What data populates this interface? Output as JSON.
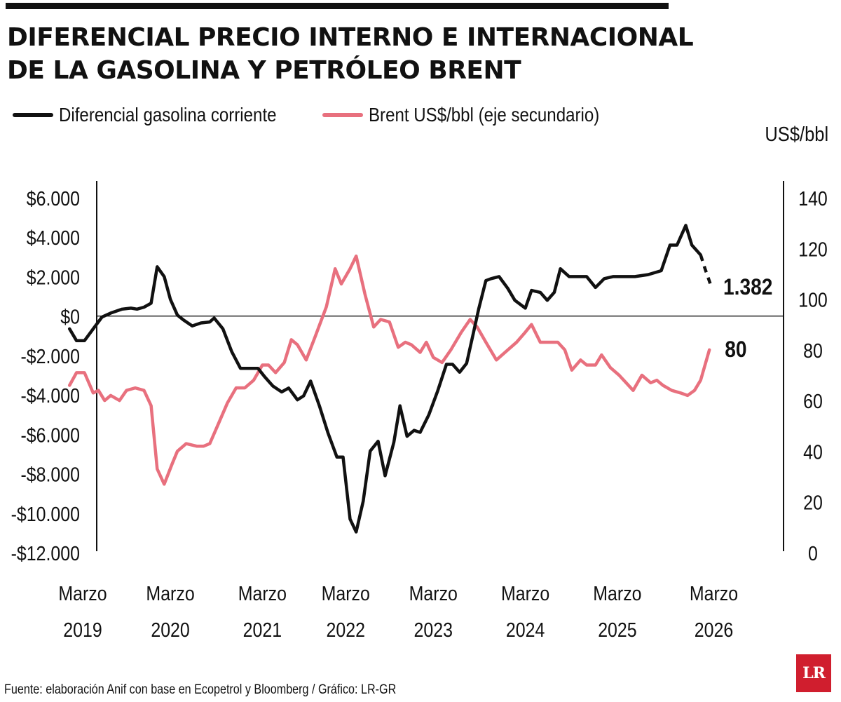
{
  "title": {
    "line1": "DIFERENCIAL PRECIO INTERNO E INTERNACIONAL",
    "line2": "DE LA GASOLINA Y PETRÓLEO BRENT"
  },
  "legend": {
    "series1": "Diferencial gasolina corriente",
    "series2": "Brent US$/bbl (eje secundario)"
  },
  "right_axis_unit": "US$/bbl",
  "source": "Fuente: elaboración Anif con base en Ecopetrol y Bloomberg / Gráfico: LR-GR",
  "logo_text": "LR",
  "colors": {
    "diferencial": "#111111",
    "brent": "#e8707e",
    "zero_line": "#111111"
  },
  "chart_data": {
    "type": "line",
    "x_range": [
      2019.0,
      2026.3
    ],
    "x_ticks": [
      {
        "month": "Marzo",
        "year": "2019",
        "x": 2019.0
      },
      {
        "month": "Marzo",
        "year": "2020",
        "x": 2020.0
      },
      {
        "month": "Marzo",
        "year": "2021",
        "x": 2021.05
      },
      {
        "month": "Marzo",
        "year": "2022",
        "x": 2022.0
      },
      {
        "month": "Marzo",
        "year": "2023",
        "x": 2023.0
      },
      {
        "month": "Marzo",
        "year": "2024",
        "x": 2024.05
      },
      {
        "month": "Marzo",
        "year": "2025",
        "x": 2025.1
      },
      {
        "month": "Marzo",
        "year": "2026",
        "x": 2026.2
      }
    ],
    "y_left": {
      "range": [
        -12000,
        6000
      ],
      "ticks": [
        6000,
        4000,
        2000,
        0,
        -2000,
        -4000,
        -6000,
        -8000,
        -10000,
        -12000
      ],
      "tick_labels": [
        "$6.000",
        "$4.000",
        "$2.000",
        "$0",
        "-$2.000",
        "-$4.000",
        "-$6.000",
        "-$8.000",
        "-$10.000",
        "-$12.000"
      ]
    },
    "y_right": {
      "range": [
        0,
        140
      ],
      "ticks": [
        140,
        120,
        100,
        80,
        60,
        40,
        20,
        0
      ],
      "tick_labels": [
        "140",
        "120",
        "100",
        "80",
        "60",
        "40",
        "20",
        "0"
      ]
    },
    "series": [
      {
        "name": "Diferencial gasolina corriente",
        "axis": "left",
        "points": [
          [
            2018.85,
            -650
          ],
          [
            2018.93,
            -1250
          ],
          [
            2019.02,
            -1250
          ],
          [
            2019.12,
            -650
          ],
          [
            2019.22,
            -50
          ],
          [
            2019.32,
            150
          ],
          [
            2019.45,
            350
          ],
          [
            2019.55,
            400
          ],
          [
            2019.62,
            350
          ],
          [
            2019.7,
            450
          ],
          [
            2019.78,
            650
          ],
          [
            2019.85,
            2500
          ],
          [
            2019.93,
            2000
          ],
          [
            2020.0,
            850
          ],
          [
            2020.08,
            50
          ],
          [
            2020.15,
            -200
          ],
          [
            2020.25,
            -500
          ],
          [
            2020.35,
            -350
          ],
          [
            2020.45,
            -300
          ],
          [
            2020.5,
            -100
          ],
          [
            2020.6,
            -650
          ],
          [
            2020.7,
            -1800
          ],
          [
            2020.8,
            -2650
          ],
          [
            2020.9,
            -2650
          ],
          [
            2021.0,
            -2650
          ],
          [
            2021.08,
            -3100
          ],
          [
            2021.17,
            -3550
          ],
          [
            2021.27,
            -3850
          ],
          [
            2021.35,
            -3650
          ],
          [
            2021.45,
            -4250
          ],
          [
            2021.52,
            -4050
          ],
          [
            2021.6,
            -3300
          ],
          [
            2021.7,
            -4550
          ],
          [
            2021.8,
            -5950
          ],
          [
            2021.9,
            -7150
          ],
          [
            2021.97,
            -7150
          ],
          [
            2022.05,
            -10300
          ],
          [
            2022.12,
            -10950
          ],
          [
            2022.2,
            -9400
          ],
          [
            2022.28,
            -6850
          ],
          [
            2022.37,
            -6350
          ],
          [
            2022.45,
            -8100
          ],
          [
            2022.55,
            -6400
          ],
          [
            2022.62,
            -4550
          ],
          [
            2022.7,
            -6100
          ],
          [
            2022.78,
            -5800
          ],
          [
            2022.85,
            -5900
          ],
          [
            2022.95,
            -5000
          ],
          [
            2023.05,
            -3800
          ],
          [
            2023.15,
            -2450
          ],
          [
            2023.22,
            -2450
          ],
          [
            2023.3,
            -2850
          ],
          [
            2023.38,
            -2400
          ],
          [
            2023.45,
            -1000
          ],
          [
            2023.52,
            400
          ],
          [
            2023.6,
            1800
          ],
          [
            2023.66,
            1900
          ],
          [
            2023.75,
            2000
          ],
          [
            2023.85,
            1400
          ],
          [
            2023.93,
            800
          ],
          [
            2024.05,
            400
          ],
          [
            2024.12,
            1300
          ],
          [
            2024.22,
            1200
          ],
          [
            2024.3,
            800
          ],
          [
            2024.38,
            1200
          ],
          [
            2024.45,
            2400
          ],
          [
            2024.55,
            2000
          ],
          [
            2024.65,
            2000
          ],
          [
            2024.75,
            2000
          ],
          [
            2024.85,
            1450
          ],
          [
            2024.95,
            1900
          ],
          [
            2025.05,
            2000
          ],
          [
            2025.2,
            2000
          ],
          [
            2025.3,
            2000
          ],
          [
            2025.45,
            2100
          ],
          [
            2025.6,
            2300
          ],
          [
            2025.7,
            3600
          ],
          [
            2025.78,
            3600
          ],
          [
            2025.88,
            4600
          ],
          [
            2025.95,
            3600
          ],
          [
            2026.05,
            3100
          ]
        ],
        "projection_points": [
          [
            2026.05,
            3100
          ],
          [
            2026.1,
            2400
          ],
          [
            2026.18,
            1382
          ]
        ],
        "end_label": "1.382"
      },
      {
        "name": "Brent US$/bbl (eje secundario)",
        "axis": "right",
        "points": [
          [
            2018.85,
            66
          ],
          [
            2018.93,
            71
          ],
          [
            2019.02,
            71
          ],
          [
            2019.12,
            63
          ],
          [
            2019.18,
            64
          ],
          [
            2019.25,
            60
          ],
          [
            2019.32,
            62
          ],
          [
            2019.42,
            60
          ],
          [
            2019.5,
            64
          ],
          [
            2019.6,
            65
          ],
          [
            2019.7,
            64
          ],
          [
            2019.78,
            58
          ],
          [
            2019.85,
            33
          ],
          [
            2019.93,
            27
          ],
          [
            2020.02,
            35
          ],
          [
            2020.08,
            40
          ],
          [
            2020.18,
            43
          ],
          [
            2020.3,
            42
          ],
          [
            2020.38,
            42
          ],
          [
            2020.45,
            43
          ],
          [
            2020.55,
            51
          ],
          [
            2020.65,
            59
          ],
          [
            2020.75,
            65
          ],
          [
            2020.85,
            65
          ],
          [
            2020.95,
            68
          ],
          [
            2021.05,
            74
          ],
          [
            2021.12,
            74
          ],
          [
            2021.2,
            71
          ],
          [
            2021.3,
            75
          ],
          [
            2021.38,
            84
          ],
          [
            2021.45,
            82
          ],
          [
            2021.55,
            76
          ],
          [
            2021.65,
            85
          ],
          [
            2021.78,
            97
          ],
          [
            2021.88,
            112
          ],
          [
            2021.95,
            106
          ],
          [
            2022.05,
            112
          ],
          [
            2022.12,
            117
          ],
          [
            2022.22,
            102
          ],
          [
            2022.32,
            89
          ],
          [
            2022.4,
            92
          ],
          [
            2022.5,
            91
          ],
          [
            2022.6,
            81
          ],
          [
            2022.68,
            83
          ],
          [
            2022.75,
            82
          ],
          [
            2022.85,
            79
          ],
          [
            2022.92,
            83
          ],
          [
            2023.0,
            77
          ],
          [
            2023.1,
            75
          ],
          [
            2023.2,
            80
          ],
          [
            2023.32,
            87
          ],
          [
            2023.42,
            92
          ],
          [
            2023.5,
            89
          ],
          [
            2023.6,
            83
          ],
          [
            2023.72,
            76
          ],
          [
            2023.85,
            80
          ],
          [
            2023.95,
            83
          ],
          [
            2024.05,
            87
          ],
          [
            2024.12,
            90
          ],
          [
            2024.22,
            83
          ],
          [
            2024.32,
            83
          ],
          [
            2024.42,
            83
          ],
          [
            2024.5,
            80
          ],
          [
            2024.58,
            72
          ],
          [
            2024.68,
            76
          ],
          [
            2024.75,
            74
          ],
          [
            2024.85,
            74
          ],
          [
            2024.92,
            78
          ],
          [
            2025.02,
            73
          ],
          [
            2025.12,
            70
          ],
          [
            2025.2,
            67
          ],
          [
            2025.28,
            64
          ],
          [
            2025.38,
            70
          ],
          [
            2025.48,
            67
          ],
          [
            2025.55,
            68
          ],
          [
            2025.62,
            66
          ],
          [
            2025.72,
            64
          ],
          [
            2025.82,
            63
          ],
          [
            2025.9,
            62
          ],
          [
            2025.98,
            64
          ],
          [
            2026.05,
            68
          ],
          [
            2026.15,
            80
          ]
        ],
        "end_label": "80"
      }
    ]
  }
}
